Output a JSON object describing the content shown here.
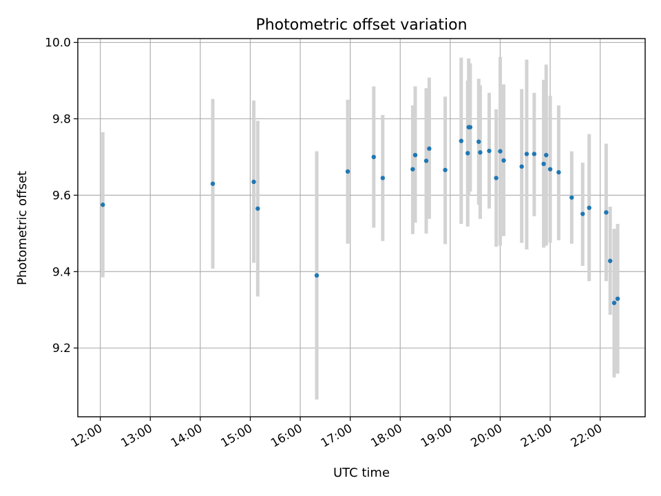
{
  "chart_data": {
    "type": "scatter",
    "title": "Photometric offset variation",
    "xlabel": "UTC time",
    "ylabel": "Photometric offset",
    "x_unit": "hours UTC",
    "xlim": [
      11.55,
      22.9
    ],
    "ylim": [
      9.02,
      10.01
    ],
    "x_ticks": [
      {
        "value": 12,
        "label": "12:00"
      },
      {
        "value": 13,
        "label": "13:00"
      },
      {
        "value": 14,
        "label": "14:00"
      },
      {
        "value": 15,
        "label": "15:00"
      },
      {
        "value": 16,
        "label": "16:00"
      },
      {
        "value": 17,
        "label": "17:00"
      },
      {
        "value": 18,
        "label": "18:00"
      },
      {
        "value": 19,
        "label": "19:00"
      },
      {
        "value": 20,
        "label": "20:00"
      },
      {
        "value": 21,
        "label": "21:00"
      },
      {
        "value": 22,
        "label": "22:00"
      }
    ],
    "y_ticks": [
      {
        "value": 9.2,
        "label": "9.2"
      },
      {
        "value": 9.4,
        "label": "9.4"
      },
      {
        "value": 9.6,
        "label": "9.6"
      },
      {
        "value": 9.8,
        "label": "9.8"
      },
      {
        "value": 10.0,
        "label": "10.0"
      }
    ],
    "grid": true,
    "colors": {
      "point": "#1f77b4",
      "errorbar": "#d3d3d3"
    },
    "points": [
      {
        "x": 12.05,
        "y": 9.575,
        "ylo": 9.385,
        "yhi": 9.765
      },
      {
        "x": 14.25,
        "y": 9.63,
        "ylo": 9.408,
        "yhi": 9.852
      },
      {
        "x": 15.07,
        "y": 9.635,
        "ylo": 9.423,
        "yhi": 9.848
      },
      {
        "x": 15.15,
        "y": 9.565,
        "ylo": 9.335,
        "yhi": 9.795
      },
      {
        "x": 16.33,
        "y": 9.39,
        "ylo": 9.065,
        "yhi": 9.715
      },
      {
        "x": 16.95,
        "y": 9.662,
        "ylo": 9.473,
        "yhi": 9.85
      },
      {
        "x": 17.47,
        "y": 9.7,
        "ylo": 9.515,
        "yhi": 9.885
      },
      {
        "x": 17.65,
        "y": 9.645,
        "ylo": 9.48,
        "yhi": 9.81
      },
      {
        "x": 18.25,
        "y": 9.668,
        "ylo": 9.498,
        "yhi": 9.835
      },
      {
        "x": 18.3,
        "y": 9.705,
        "ylo": 9.528,
        "yhi": 9.885
      },
      {
        "x": 18.52,
        "y": 9.69,
        "ylo": 9.5,
        "yhi": 9.88
      },
      {
        "x": 18.58,
        "y": 9.722,
        "ylo": 9.538,
        "yhi": 9.908
      },
      {
        "x": 18.9,
        "y": 9.666,
        "ylo": 9.472,
        "yhi": 9.858
      },
      {
        "x": 19.22,
        "y": 9.742,
        "ylo": 9.525,
        "yhi": 9.96
      },
      {
        "x": 19.35,
        "y": 9.71,
        "ylo": 9.518,
        "yhi": 9.9
      },
      {
        "x": 19.37,
        "y": 9.778,
        "ylo": 9.6,
        "yhi": 9.958
      },
      {
        "x": 19.4,
        "y": 9.778,
        "ylo": 9.61,
        "yhi": 9.945
      },
      {
        "x": 19.57,
        "y": 9.74,
        "ylo": 9.575,
        "yhi": 9.905
      },
      {
        "x": 19.6,
        "y": 9.712,
        "ylo": 9.538,
        "yhi": 9.888
      },
      {
        "x": 19.78,
        "y": 9.716,
        "ylo": 9.565,
        "yhi": 9.868
      },
      {
        "x": 19.92,
        "y": 9.645,
        "ylo": 9.465,
        "yhi": 9.825
      },
      {
        "x": 20.0,
        "y": 9.715,
        "ylo": 9.468,
        "yhi": 9.962
      },
      {
        "x": 20.07,
        "y": 9.691,
        "ylo": 9.493,
        "yhi": 9.89
      },
      {
        "x": 20.43,
        "y": 9.675,
        "ylo": 9.475,
        "yhi": 9.878
      },
      {
        "x": 20.53,
        "y": 9.708,
        "ylo": 9.458,
        "yhi": 9.955
      },
      {
        "x": 20.68,
        "y": 9.708,
        "ylo": 9.545,
        "yhi": 9.868
      },
      {
        "x": 20.87,
        "y": 9.682,
        "ylo": 9.463,
        "yhi": 9.902
      },
      {
        "x": 20.92,
        "y": 9.705,
        "ylo": 9.468,
        "yhi": 9.942
      },
      {
        "x": 21.0,
        "y": 9.668,
        "ylo": 9.475,
        "yhi": 9.86
      },
      {
        "x": 21.17,
        "y": 9.66,
        "ylo": 9.482,
        "yhi": 9.835
      },
      {
        "x": 21.43,
        "y": 9.594,
        "ylo": 9.473,
        "yhi": 9.715
      },
      {
        "x": 21.65,
        "y": 9.551,
        "ylo": 9.415,
        "yhi": 9.685
      },
      {
        "x": 21.78,
        "y": 9.567,
        "ylo": 9.375,
        "yhi": 9.76
      },
      {
        "x": 22.12,
        "y": 9.555,
        "ylo": 9.375,
        "yhi": 9.735
      },
      {
        "x": 22.2,
        "y": 9.428,
        "ylo": 9.287,
        "yhi": 9.57
      },
      {
        "x": 22.28,
        "y": 9.318,
        "ylo": 9.123,
        "yhi": 9.512
      },
      {
        "x": 22.35,
        "y": 9.329,
        "ylo": 9.133,
        "yhi": 9.525
      }
    ]
  }
}
